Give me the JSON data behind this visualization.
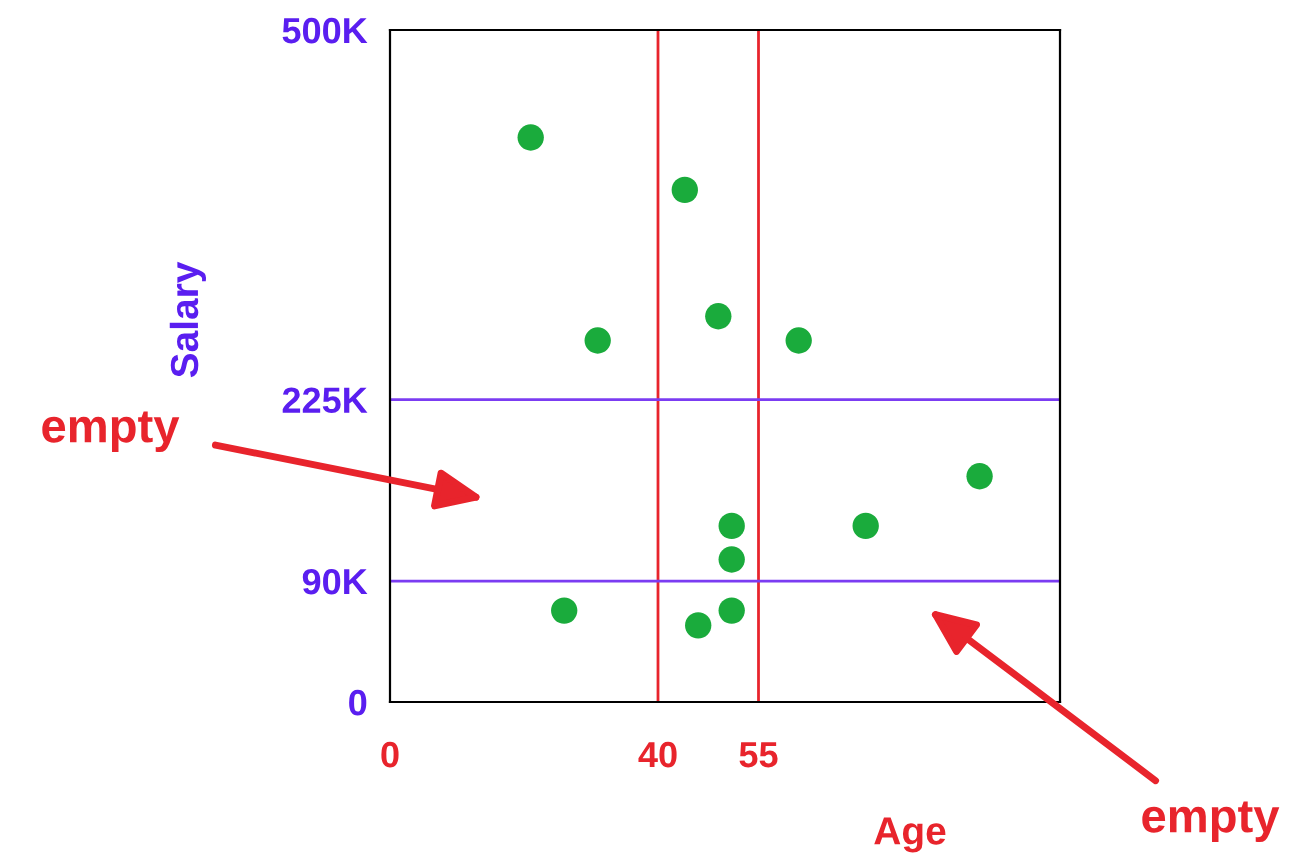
{
  "chart_data": {
    "type": "scatter",
    "xlabel": "Age",
    "ylabel": "Salary",
    "x": [
      21,
      44,
      31,
      49,
      61,
      88,
      71,
      51,
      51,
      26,
      46,
      51
    ],
    "series": [
      {
        "color": "#1aab3c",
        "values": [
          420000,
          381000,
          269000,
          287000,
          269000,
          168000,
          131000,
          131000,
          106000,
          68000,
          57000,
          68000
        ]
      }
    ],
    "xlim": [
      0,
      100
    ],
    "ylim": [
      0,
      500000
    ],
    "xticks": [
      0,
      40,
      55
    ],
    "yticks": [
      {
        "value": 0,
        "label": "0"
      },
      {
        "value": 90000,
        "label": "90K"
      },
      {
        "value": 225000,
        "label": "225K"
      },
      {
        "value": 500000,
        "label": "500K"
      }
    ],
    "ref_lines": [
      {
        "axis": "x",
        "value": 40,
        "color": "#e8242c"
      },
      {
        "axis": "x",
        "value": 55,
        "color": "#e8242c"
      },
      {
        "axis": "y",
        "value": 90000,
        "color": "#7b3cf2"
      },
      {
        "axis": "y",
        "value": 225000,
        "color": "#7b3cf2"
      }
    ],
    "annotations": [
      "empty",
      "empty"
    ],
    "marker": "circle",
    "grid": false,
    "legend": false
  }
}
